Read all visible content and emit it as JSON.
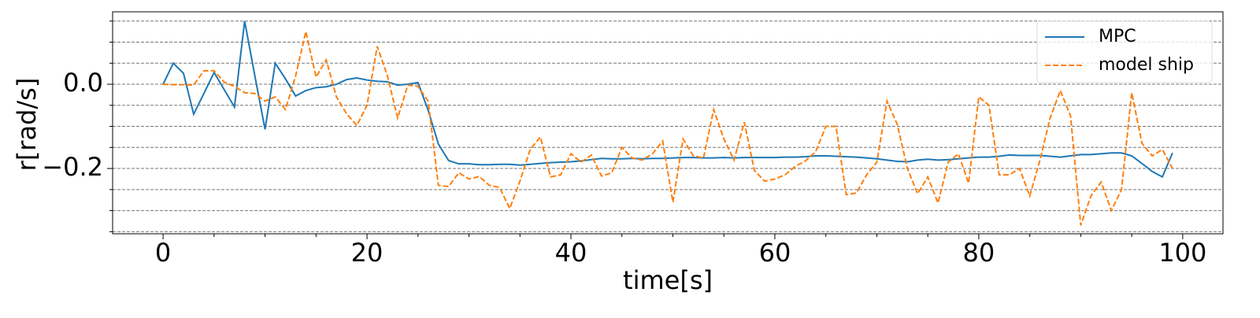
{
  "chart_data": {
    "type": "line",
    "xlabel": "time[s]",
    "ylabel": "r[rad/s]",
    "x": [
      0,
      1,
      2,
      3,
      4,
      5,
      6,
      7,
      8,
      9,
      10,
      11,
      12,
      13,
      14,
      15,
      16,
      17,
      18,
      19,
      20,
      21,
      22,
      23,
      24,
      25,
      26,
      27,
      28,
      29,
      30,
      31,
      32,
      33,
      34,
      35,
      36,
      37,
      38,
      39,
      40,
      41,
      42,
      43,
      44,
      45,
      46,
      47,
      48,
      49,
      50,
      51,
      52,
      53,
      54,
      55,
      56,
      57,
      58,
      59,
      60,
      61,
      62,
      63,
      64,
      65,
      66,
      67,
      68,
      69,
      70,
      71,
      72,
      73,
      74,
      75,
      76,
      77,
      78,
      79,
      80,
      81,
      82,
      83,
      84,
      85,
      86,
      87,
      88,
      89,
      90,
      91,
      92,
      93,
      94,
      95,
      96,
      97,
      98,
      99
    ],
    "series": [
      {
        "name": "MPC",
        "color": "#1f77b4",
        "dash": "solid",
        "values": [
          0,
          0.05,
          0.026,
          -0.071,
          -0.022,
          0.028,
          -0.013,
          -0.054,
          0.15,
          0.02,
          -0.107,
          0.05,
          0.013,
          -0.028,
          -0.015,
          -0.008,
          -0.006,
          0,
          0.011,
          0.015,
          0.01,
          0.007,
          0.006,
          -0.002,
          0,
          0.004,
          -0.062,
          -0.142,
          -0.181,
          -0.189,
          -0.189,
          -0.191,
          -0.191,
          -0.19,
          -0.19,
          -0.192,
          -0.19,
          -0.188,
          -0.186,
          -0.185,
          -0.184,
          -0.182,
          -0.179,
          -0.176,
          -0.177,
          -0.177,
          -0.176,
          -0.177,
          -0.176,
          -0.176,
          -0.175,
          -0.174,
          -0.174,
          -0.175,
          -0.175,
          -0.174,
          -0.175,
          -0.174,
          -0.174,
          -0.174,
          -0.174,
          -0.173,
          -0.173,
          -0.172,
          -0.17,
          -0.17,
          -0.171,
          -0.172,
          -0.173,
          -0.175,
          -0.177,
          -0.18,
          -0.183,
          -0.184,
          -0.18,
          -0.178,
          -0.18,
          -0.179,
          -0.177,
          -0.175,
          -0.173,
          -0.173,
          -0.171,
          -0.168,
          -0.169,
          -0.169,
          -0.169,
          -0.171,
          -0.173,
          -0.17,
          -0.167,
          -0.167,
          -0.165,
          -0.163,
          -0.163,
          -0.17,
          -0.188,
          -0.207,
          -0.22,
          -0.163
        ]
      },
      {
        "name": "model ship",
        "color": "#ff7f0e",
        "dash": "dashed",
        "values": [
          0,
          -0.001,
          -0.001,
          -0.002,
          0.032,
          0.032,
          0.005,
          -0.005,
          -0.02,
          -0.022,
          -0.04,
          -0.03,
          -0.06,
          0.02,
          0.125,
          0.017,
          0.058,
          -0.03,
          -0.07,
          -0.098,
          -0.05,
          0.09,
          0.02,
          -0.08,
          -0.002,
          -0.005,
          -0.04,
          -0.24,
          -0.243,
          -0.21,
          -0.225,
          -0.219,
          -0.24,
          -0.245,
          -0.295,
          -0.23,
          -0.155,
          -0.125,
          -0.22,
          -0.215,
          -0.165,
          -0.185,
          -0.168,
          -0.218,
          -0.21,
          -0.15,
          -0.175,
          -0.18,
          -0.165,
          -0.135,
          -0.28,
          -0.13,
          -0.17,
          -0.175,
          -0.06,
          -0.13,
          -0.18,
          -0.09,
          -0.205,
          -0.23,
          -0.225,
          -0.215,
          -0.195,
          -0.182,
          -0.16,
          -0.1,
          -0.1,
          -0.262,
          -0.258,
          -0.215,
          -0.185,
          -0.04,
          -0.095,
          -0.2,
          -0.26,
          -0.22,
          -0.282,
          -0.185,
          -0.165,
          -0.235,
          -0.03,
          -0.05,
          -0.215,
          -0.215,
          -0.2,
          -0.265,
          -0.18,
          -0.08,
          -0.015,
          -0.075,
          -0.335,
          -0.265,
          -0.232,
          -0.3,
          -0.25,
          -0.02,
          -0.14,
          -0.17,
          -0.155,
          -0.2
        ]
      }
    ],
    "xlim": [
      -4.95,
      103.95
    ],
    "xticks": [
      0,
      20,
      40,
      60,
      80,
      100
    ],
    "minor_xticks": [
      5,
      10,
      15,
      25,
      30,
      35,
      45,
      50,
      55,
      65,
      70,
      75,
      85,
      90,
      95
    ],
    "ylim": [
      -0.355,
      0.172
    ],
    "yticks": [
      {
        "value": 0,
        "label": "0.0"
      },
      {
        "value": -0.2,
        "label": "−0.2"
      }
    ],
    "minor_yticks": [
      0.15,
      0.1,
      0.05,
      -0.05,
      -0.1,
      -0.15,
      -0.25,
      -0.3,
      -0.35
    ],
    "grid": true,
    "legend": "upper right"
  }
}
